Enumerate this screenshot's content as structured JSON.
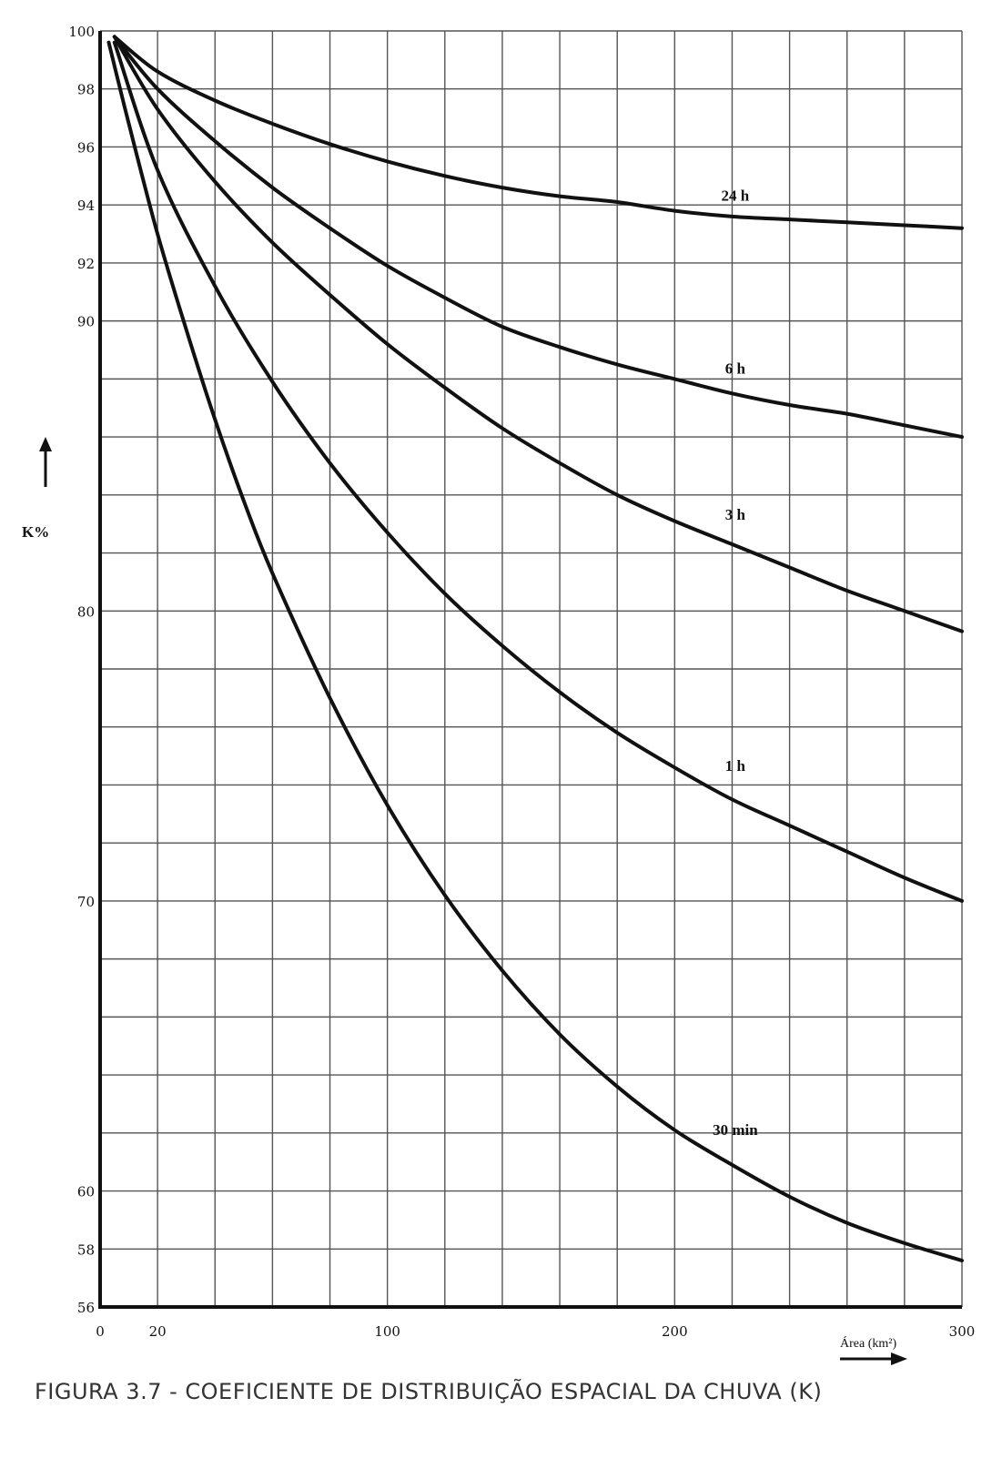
{
  "caption": "FIGURA 3.7 - COEFICIENTE DE DISTRIBUIÇÃO ESPACIAL DA CHUVA (K)",
  "chart_data": {
    "type": "line",
    "title": "",
    "xlabel": "Área (km²)",
    "ylabel": "K%",
    "xlim": [
      0,
      300
    ],
    "ylim": [
      56,
      100
    ],
    "grid": true,
    "x_tick_labels": [
      "0",
      "20",
      "100",
      "200",
      "300"
    ],
    "y_tick_labels": [
      "100",
      "98",
      "96",
      "94",
      "92",
      "90",
      "80",
      "70",
      "60",
      "58",
      "56"
    ],
    "series": [
      {
        "name": "24 h",
        "x": [
          5,
          20,
          40,
          60,
          80,
          100,
          120,
          140,
          160,
          180,
          200,
          220,
          240,
          260,
          280,
          300
        ],
        "y": [
          99.8,
          98.6,
          97.6,
          96.8,
          96.1,
          95.5,
          95.0,
          94.6,
          94.3,
          94.1,
          93.8,
          93.6,
          93.5,
          93.4,
          93.3,
          93.2
        ]
      },
      {
        "name": "6 h",
        "x": [
          5,
          20,
          40,
          60,
          80,
          100,
          120,
          140,
          160,
          180,
          200,
          220,
          240,
          260,
          280,
          300
        ],
        "y": [
          99.8,
          98.0,
          96.2,
          94.6,
          93.2,
          91.9,
          90.8,
          89.8,
          89.1,
          88.5,
          88.0,
          87.5,
          87.1,
          86.8,
          86.4,
          86.0
        ]
      },
      {
        "name": "3 h",
        "x": [
          5,
          20,
          40,
          60,
          80,
          100,
          120,
          140,
          160,
          180,
          200,
          220,
          240,
          260,
          280,
          300
        ],
        "y": [
          99.8,
          97.3,
          94.8,
          92.7,
          90.9,
          89.2,
          87.7,
          86.3,
          85.1,
          84.0,
          83.1,
          82.3,
          81.5,
          80.7,
          80.0,
          79.3
        ]
      },
      {
        "name": "1 h",
        "x": [
          5,
          20,
          40,
          60,
          80,
          100,
          120,
          140,
          160,
          180,
          200,
          220,
          240,
          260,
          280,
          300
        ],
        "y": [
          99.6,
          95.2,
          91.2,
          87.9,
          85.1,
          82.7,
          80.6,
          78.8,
          77.2,
          75.8,
          74.6,
          73.5,
          72.6,
          71.7,
          70.8,
          70.0
        ]
      },
      {
        "name": "30 min",
        "x": [
          3,
          10,
          20,
          30,
          40,
          50,
          60,
          80,
          100,
          120,
          140,
          160,
          180,
          200,
          220,
          240,
          260,
          280,
          300
        ],
        "y": [
          99.6,
          96.8,
          93.0,
          89.7,
          86.6,
          83.8,
          81.3,
          77.0,
          73.3,
          70.2,
          67.6,
          65.4,
          63.6,
          62.1,
          60.9,
          59.8,
          58.9,
          58.2,
          57.6
        ]
      }
    ]
  }
}
